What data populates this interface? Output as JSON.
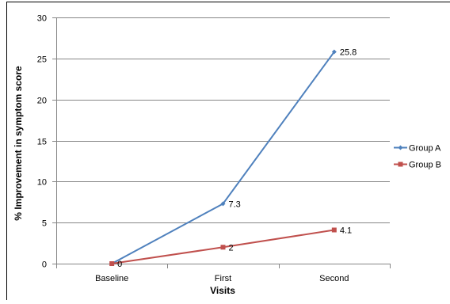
{
  "chart_data": {
    "type": "line",
    "title": "",
    "xlabel": "Visits",
    "ylabel": "% Improvement in symptom score",
    "categories": [
      "Baseline",
      "First",
      "Second"
    ],
    "ylim": [
      0,
      30
    ],
    "yticks": [
      0,
      5,
      10,
      15,
      20,
      25,
      30
    ],
    "grid": true,
    "legend_position": "right",
    "series": [
      {
        "name": "Group A",
        "values": [
          0,
          7.3,
          25.8
        ],
        "labels": [
          "0",
          "7.3",
          "25.8"
        ],
        "color": "#4F81BD",
        "marker": "diamond"
      },
      {
        "name": "Group B",
        "values": [
          0,
          2,
          4.1
        ],
        "labels": [
          "0",
          "2",
          "4.1"
        ],
        "color": "#C0504D",
        "marker": "square"
      }
    ]
  }
}
